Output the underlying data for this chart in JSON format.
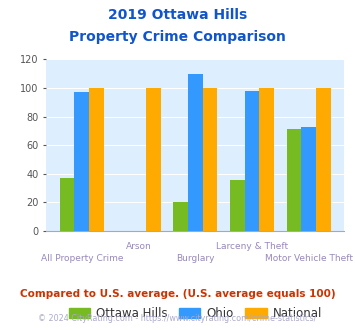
{
  "title_line1": "2019 Ottawa Hills",
  "title_line2": "Property Crime Comparison",
  "categories": [
    "All Property Crime",
    "Arson",
    "Burglary",
    "Larceny & Theft",
    "Motor Vehicle Theft"
  ],
  "ottawa_hills": [
    37,
    0,
    20,
    36,
    71
  ],
  "ohio": [
    97,
    0,
    110,
    98,
    73
  ],
  "national": [
    100,
    100,
    100,
    100,
    100
  ],
  "ottawa_color": "#77bb22",
  "ohio_color": "#3399ff",
  "national_color": "#ffaa00",
  "bg_color": "#ddeeff",
  "ylim": [
    0,
    120
  ],
  "yticks": [
    0,
    20,
    40,
    60,
    80,
    100,
    120
  ],
  "title_color": "#1155cc",
  "xlabel_color": "#9988bb",
  "legend_labels": [
    "Ottawa Hills",
    "Ohio",
    "National"
  ],
  "footnote1": "Compared to U.S. average. (U.S. average equals 100)",
  "footnote2": "© 2024 CityRating.com - https://www.cityrating.com/crime-statistics/",
  "footnote1_color": "#cc3300",
  "footnote2_color": "#aaaacc",
  "footnote2_link_color": "#3366cc"
}
